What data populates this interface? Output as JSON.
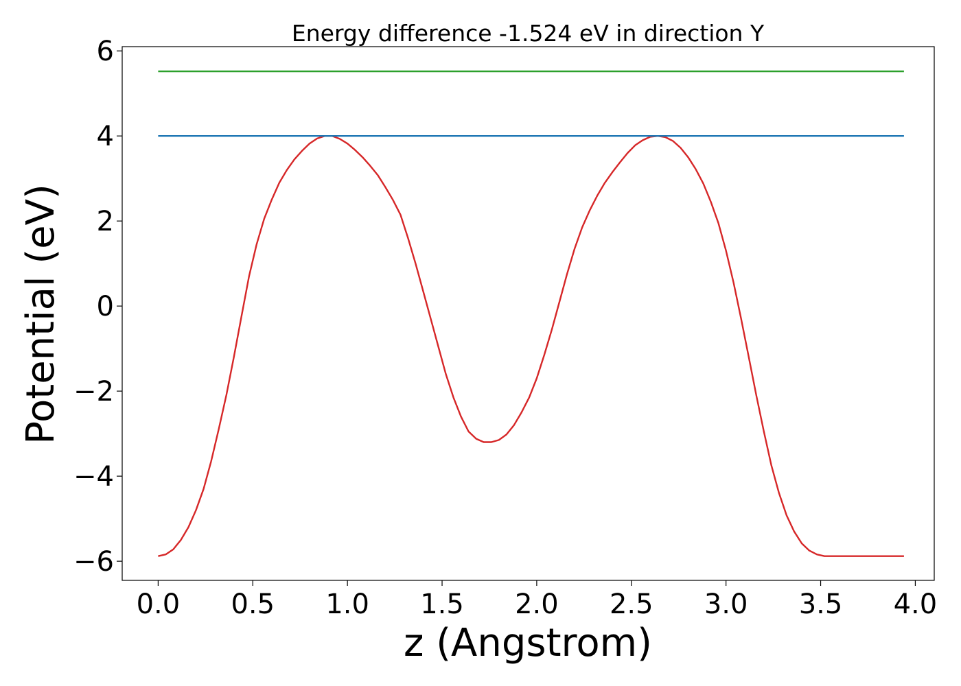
{
  "chart_data": {
    "type": "line",
    "title": "Energy difference -1.524 eV in direction Y",
    "xlabel": "z (Angstrom)",
    "ylabel": "Potential (eV)",
    "xlim": [
      -0.19,
      4.1
    ],
    "ylim": [
      -6.45,
      6.1
    ],
    "xticks": [
      0.0,
      0.5,
      1.0,
      1.5,
      2.0,
      2.5,
      3.0,
      3.5,
      4.0
    ],
    "xtick_labels": [
      "0.0",
      "0.5",
      "1.0",
      "1.5",
      "2.0",
      "2.5",
      "3.0",
      "3.5",
      "4.0"
    ],
    "yticks": [
      -6,
      -4,
      -2,
      0,
      2,
      4,
      6
    ],
    "ytick_labels": [
      "−6",
      "−4",
      "−2",
      "0",
      "2",
      "4",
      "6"
    ],
    "grid": false,
    "series": [
      {
        "color": "#d62728",
        "x": [
          0.0,
          0.04,
          0.08,
          0.12,
          0.16,
          0.2,
          0.24,
          0.28,
          0.32,
          0.36,
          0.4,
          0.44,
          0.48,
          0.52,
          0.56,
          0.6,
          0.64,
          0.68,
          0.72,
          0.76,
          0.8,
          0.84,
          0.88,
          0.92,
          0.96,
          1.0,
          1.04,
          1.08,
          1.12,
          1.16,
          1.2,
          1.24,
          1.28,
          1.32,
          1.36,
          1.4,
          1.44,
          1.48,
          1.52,
          1.56,
          1.6,
          1.64,
          1.68,
          1.72,
          1.76,
          1.8,
          1.84,
          1.88,
          1.92,
          1.96,
          2.0,
          2.04,
          2.08,
          2.12,
          2.16,
          2.2,
          2.24,
          2.28,
          2.32,
          2.36,
          2.4,
          2.44,
          2.48,
          2.52,
          2.56,
          2.6,
          2.64,
          2.68,
          2.72,
          2.76,
          2.8,
          2.84,
          2.88,
          2.92,
          2.96,
          3.0,
          3.04,
          3.08,
          3.12,
          3.16,
          3.2,
          3.24,
          3.28,
          3.32,
          3.36,
          3.4,
          3.44,
          3.48,
          3.52,
          3.56,
          3.6,
          3.64,
          3.68,
          3.72,
          3.76,
          3.8,
          3.84,
          3.88,
          3.92,
          3.94
        ],
        "y": [
          -5.88,
          -5.84,
          -5.72,
          -5.5,
          -5.2,
          -4.8,
          -4.3,
          -3.65,
          -2.9,
          -2.1,
          -1.2,
          -0.25,
          0.7,
          1.45,
          2.05,
          2.5,
          2.9,
          3.2,
          3.45,
          3.65,
          3.82,
          3.94,
          4.0,
          4.0,
          3.93,
          3.82,
          3.67,
          3.5,
          3.3,
          3.08,
          2.8,
          2.5,
          2.15,
          1.6,
          1.0,
          0.35,
          -0.3,
          -0.95,
          -1.6,
          -2.15,
          -2.6,
          -2.95,
          -3.12,
          -3.2,
          -3.2,
          -3.15,
          -3.02,
          -2.8,
          -2.5,
          -2.15,
          -1.7,
          -1.15,
          -0.55,
          0.1,
          0.75,
          1.35,
          1.85,
          2.25,
          2.6,
          2.9,
          3.15,
          3.38,
          3.6,
          3.78,
          3.9,
          3.98,
          4.0,
          3.97,
          3.88,
          3.72,
          3.5,
          3.22,
          2.88,
          2.45,
          1.95,
          1.3,
          0.55,
          -0.3,
          -1.2,
          -2.1,
          -2.95,
          -3.75,
          -4.4,
          -4.92,
          -5.3,
          -5.58,
          -5.75,
          -5.84,
          -5.88,
          -5.88,
          -5.88,
          -5.88,
          -5.88,
          -5.88,
          -5.88,
          -5.88,
          -5.88,
          -5.88,
          -5.88,
          -5.88
        ]
      },
      {
        "color": "#1f77b4",
        "x": [
          0.0,
          3.94
        ],
        "y": [
          4.0,
          4.0
        ]
      },
      {
        "color": "#2ca02c",
        "x": [
          0.0,
          3.94
        ],
        "y": [
          5.52,
          5.52
        ]
      }
    ]
  }
}
